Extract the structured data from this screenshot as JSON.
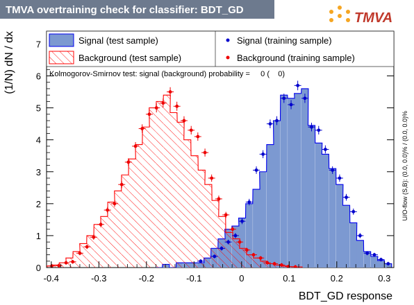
{
  "header": {
    "title": "TMVA overtraining check for classifier: BDT_GD",
    "logo_text": "TMVA"
  },
  "chart_data": {
    "type": "histogram",
    "xlabel": "BDT_GD response",
    "ylabel": "(1/N) dN / dx",
    "side_label": "U/O-flow (S,B): (0.0, 0.0)% / (0.0, 0.0)%",
    "ks_text": "Kolmogorov-Smirnov test: signal (background) probability =     0 (    0)",
    "xlim": [
      -0.41,
      0.32
    ],
    "ylim": [
      0,
      7.4
    ],
    "x_ticks": [
      -0.4,
      -0.3,
      -0.2,
      -0.1,
      0,
      0.1,
      0.2,
      0.3
    ],
    "x_tick_labels": [
      "-0.4",
      "-0.3",
      "-0.2",
      "-0.1",
      "0",
      "0.1",
      "0.2",
      "0.3"
    ],
    "y_ticks": [
      0,
      1,
      2,
      3,
      4,
      5,
      6,
      7
    ],
    "y_tick_labels": [
      "0",
      "1",
      "2",
      "3",
      "4",
      "5",
      "6",
      "7"
    ],
    "bin_width": 0.0146,
    "legend": [
      {
        "key": "sig_test",
        "label": "Signal (test sample)"
      },
      {
        "key": "sig_train",
        "label": "Signal (training sample)"
      },
      {
        "key": "bkg_test",
        "label": "Background (test sample)"
      },
      {
        "key": "bkg_train",
        "label": "Background (training sample)"
      }
    ],
    "series": [
      {
        "key": "signal_test",
        "style": "filled-histogram",
        "color": "#7c99d1",
        "edge": "#0000ee",
        "x": [
          -0.174,
          -0.159,
          -0.145,
          -0.13,
          -0.115,
          -0.101,
          -0.086,
          -0.072,
          -0.057,
          -0.042,
          -0.028,
          -0.013,
          0.001,
          0.016,
          0.031,
          0.045,
          0.06,
          0.074,
          0.089,
          0.104,
          0.118,
          0.133,
          0.147,
          0.162,
          0.176,
          0.191,
          0.206,
          0.22,
          0.235,
          0.249,
          0.264,
          0.279,
          0.293,
          0.308
        ],
        "y": [
          0.0,
          0.1,
          0.0,
          0.15,
          0.15,
          0.15,
          0.15,
          0.3,
          0.6,
          0.9,
          1.2,
          1.3,
          1.55,
          2.0,
          2.45,
          3.0,
          3.85,
          4.6,
          5.4,
          5.3,
          5.45,
          5.6,
          4.45,
          3.9,
          3.55,
          3.1,
          2.6,
          1.95,
          1.4,
          0.85,
          0.5,
          0.35,
          0.22,
          0.12
        ]
      },
      {
        "key": "background_test",
        "style": "hatched-histogram",
        "color": "#ff0000",
        "x": [
          -0.406,
          -0.391,
          -0.376,
          -0.362,
          -0.347,
          -0.333,
          -0.318,
          -0.303,
          -0.289,
          -0.274,
          -0.26,
          -0.245,
          -0.23,
          -0.216,
          -0.201,
          -0.187,
          -0.172,
          -0.157,
          -0.143,
          -0.128,
          -0.114,
          -0.099,
          -0.084,
          -0.07,
          -0.055,
          -0.041,
          -0.026,
          -0.011,
          0.003,
          0.018,
          0.032,
          0.047,
          0.062,
          0.076,
          0.091,
          0.105,
          0.12
        ],
        "y": [
          0.05,
          0.08,
          0.15,
          0.3,
          0.5,
          0.75,
          1.0,
          1.35,
          1.6,
          2.05,
          2.4,
          2.9,
          3.4,
          3.85,
          4.4,
          5.0,
          5.2,
          5.4,
          4.85,
          4.55,
          4.0,
          3.5,
          3.05,
          2.6,
          2.1,
          1.6,
          1.1,
          0.9,
          0.6,
          0.4,
          0.3,
          0.2,
          0.12,
          0.08,
          0.05,
          0.03,
          0.02
        ]
      },
      {
        "key": "signal_train",
        "style": "points",
        "color": "#0000cc",
        "x": [
          -0.086,
          -0.057,
          -0.042,
          -0.028,
          -0.013,
          0.001,
          0.016,
          0.031,
          0.045,
          0.06,
          0.074,
          0.089,
          0.104,
          0.118,
          0.133,
          0.147,
          0.162,
          0.176,
          0.191,
          0.206,
          0.22,
          0.235,
          0.249,
          0.264,
          0.279,
          0.293,
          0.308
        ],
        "y": [
          0.2,
          0.35,
          0.6,
          0.8,
          1.0,
          1.45,
          2.05,
          3.05,
          3.55,
          4.5,
          4.6,
          5.3,
          5.1,
          5.7,
          5.3,
          4.4,
          4.3,
          3.7,
          3.05,
          2.8,
          2.2,
          1.75,
          1.0,
          0.45,
          0.4,
          0.25,
          0.12
        ]
      },
      {
        "key": "background_train",
        "style": "points",
        "color": "#ee0000",
        "x": [
          -0.399,
          -0.384,
          -0.369,
          -0.355,
          -0.34,
          -0.325,
          -0.311,
          -0.296,
          -0.282,
          -0.267,
          -0.252,
          -0.238,
          -0.223,
          -0.209,
          -0.194,
          -0.179,
          -0.165,
          -0.15,
          -0.136,
          -0.121,
          -0.106,
          -0.092,
          -0.077,
          -0.063,
          -0.048,
          -0.033,
          -0.019,
          -0.004,
          0.011,
          0.025,
          0.04,
          0.054,
          0.069,
          0.084,
          0.098,
          0.113
        ],
        "y": [
          0.05,
          0.06,
          0.15,
          0.18,
          0.45,
          0.65,
          0.95,
          1.35,
          1.8,
          2.0,
          2.6,
          3.3,
          3.8,
          4.35,
          4.8,
          5.0,
          5.15,
          5.5,
          5.05,
          4.6,
          4.3,
          4.1,
          3.6,
          2.8,
          2.15,
          1.65,
          1.2,
          0.8,
          0.55,
          0.4,
          0.3,
          0.15,
          0.12,
          0.08,
          0.03,
          0.02
        ]
      }
    ]
  }
}
